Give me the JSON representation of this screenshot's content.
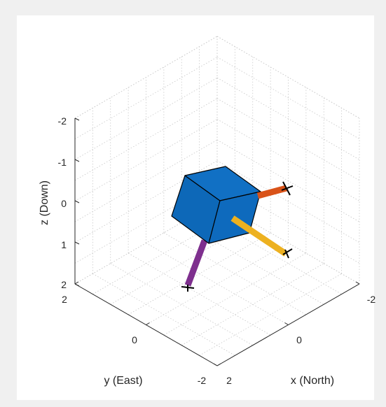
{
  "chart_data": {
    "type": "3d-scene",
    "axes": {
      "x": {
        "label": "x (North)",
        "ticks": [
          "-2",
          "0",
          "2"
        ],
        "lim": [
          -2,
          2
        ]
      },
      "y": {
        "label": "y (East)",
        "ticks": [
          "2",
          "0",
          "-2"
        ],
        "lim": [
          -2,
          2
        ]
      },
      "z": {
        "label": "z (Down)",
        "ticks": [
          "-2",
          "-1",
          "0",
          "1",
          "2"
        ],
        "lim": [
          -2,
          2
        ],
        "reversed": true
      }
    },
    "grid": "on",
    "objects": [
      {
        "name": "cube",
        "color": "#0f6dc1"
      },
      {
        "name": "arm-x",
        "color": "#d95319"
      },
      {
        "name": "arm-y",
        "color": "#edb120"
      },
      {
        "name": "arm-z",
        "color": "#7e2f8e"
      }
    ]
  },
  "colors": {
    "background": "#f0f0f0",
    "axes_background": "#ffffff",
    "grid": "#c8c8c8"
  }
}
